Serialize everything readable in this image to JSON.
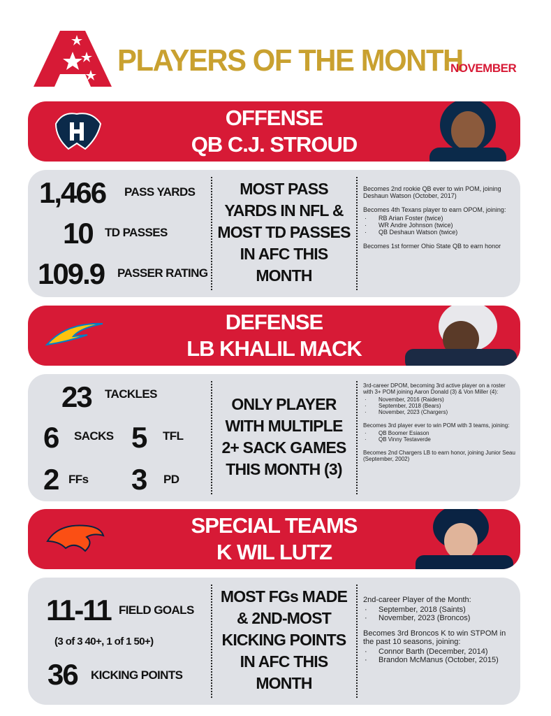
{
  "header": {
    "title": "PLAYERS OF THE MONTH",
    "month": "NOVEMBER"
  },
  "sections": [
    {
      "unit": "OFFENSE",
      "player": "QB C.J. STROUD",
      "stats": [
        {
          "value": "1,466",
          "label": "PASS YARDS"
        },
        {
          "value": "10",
          "label": "TD PASSES"
        },
        {
          "value": "109.9",
          "label": "PASSER RATING"
        }
      ],
      "highlight": [
        "MOST PASS",
        "YARDS IN NFL &",
        "MOST TD PASSES",
        "IN AFC THIS",
        "MONTH"
      ],
      "notes": [
        {
          "text": "Becomes 2nd rookie QB ever to win POM, joining Deshaun Watson (October, 2017)"
        },
        {
          "text": "Becomes 4th Texans player to earn OPOM, joining:",
          "bullets": [
            "RB Arian Foster (twice)",
            "WR Andre Johnson (twice)",
            "QB Deshaun Watson (twice)"
          ]
        },
        {
          "text": "Becomes 1st former Ohio State QB to earn honor"
        }
      ]
    },
    {
      "unit": "DEFENSE",
      "player": "LB KHALIL MACK",
      "stats": [
        {
          "value": "23",
          "label": "TACKLES"
        },
        {
          "value": "6",
          "label": "SACKS"
        },
        {
          "value": "5",
          "label": "TFL"
        },
        {
          "value": "2",
          "label": "FFs"
        },
        {
          "value": "3",
          "label": "PD"
        }
      ],
      "highlight": [
        "ONLY PLAYER",
        "WITH MULTIPLE",
        "2+ SACK GAMES",
        "THIS MONTH (3)"
      ],
      "notes": [
        {
          "text": "3rd-career DPOM, becoming 3rd active player on a roster with 3+ POM joining Aaron Donald (3) & Von Miller (4):",
          "bullets": [
            "November, 2016 (Raiders)",
            "September, 2018 (Bears)",
            "November, 2023 (Chargers)"
          ]
        },
        {
          "text": "Becomes 3rd player ever to win POM with 3 teams, joining:",
          "bullets": [
            "QB Boomer Esiason",
            "QB Vinny Testaverde"
          ]
        },
        {
          "text": "Becomes 2nd Chargers LB to earn honor, joining Junior Seau (September, 2002)"
        }
      ]
    },
    {
      "unit": "SPECIAL TEAMS",
      "player": "K WIL LUTZ",
      "stats": [
        {
          "value": "11-11",
          "label": "FIELD GOALS"
        },
        {
          "value": "36",
          "label": "KICKING POINTS"
        }
      ],
      "detail": "(3 of 3 40+, 1 of 1 50+)",
      "highlight": [
        "MOST FGs MADE",
        "& 2ND-MOST",
        "KICKING POINTS",
        "IN AFC THIS",
        "MONTH"
      ],
      "notes": [
        {
          "text": "2nd-career Player of the Month:",
          "bullets": [
            "September, 2018 (Saints)",
            "November, 2023 (Broncos)"
          ]
        },
        {
          "text": "Becomes 3rd Broncos K to win STPOM in the past 10 seasons, joining:",
          "bullets": [
            "Connor Barth (December, 2014)",
            "Brandon McManus (October, 2015)"
          ]
        }
      ]
    }
  ]
}
